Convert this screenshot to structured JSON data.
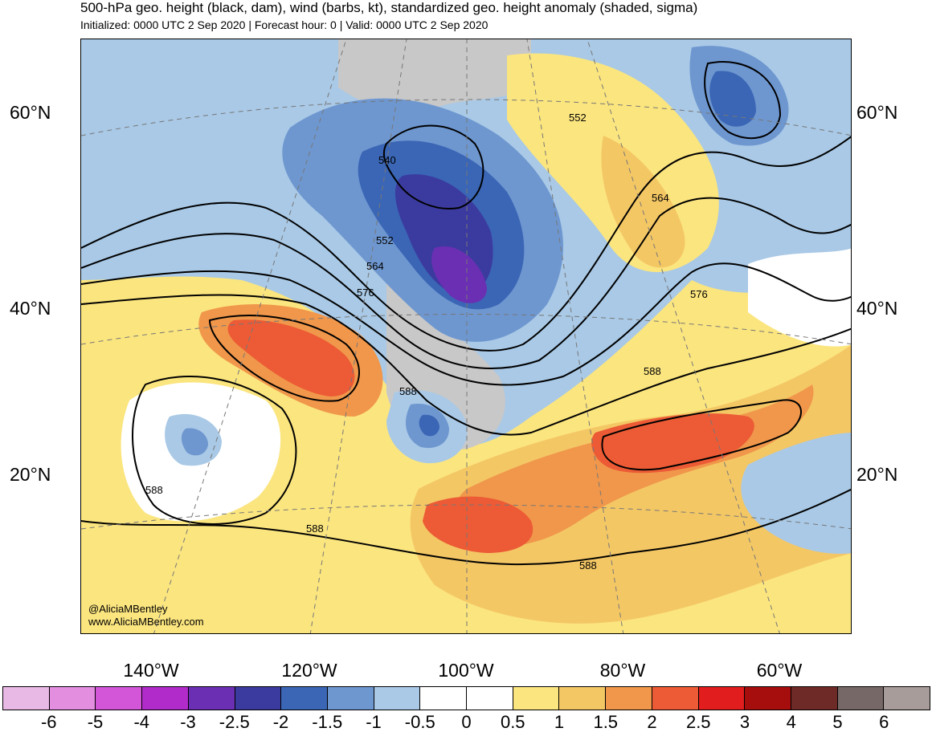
{
  "title": "500-hPa geo. height (black, dam), wind (barbs, kt), standardized geo. height anomaly (shaded, sigma)",
  "subtitle": "Initialized: 0000 UTC 2 Sep 2020 | Forecast hour: 0 | Valid: 0000 UTC 2 Sep 2020",
  "lat_labels": [
    "60°N",
    "40°N",
    "20°N"
  ],
  "lon_labels": [
    "140°W",
    "120°W",
    "100°W",
    "80°W",
    "60°W"
  ],
  "contour_labels": [
    "540",
    "552",
    "552",
    "564",
    "564",
    "576",
    "576",
    "588",
    "588",
    "588",
    "588",
    "588"
  ],
  "credits": {
    "handle": "@AliciaMBentley",
    "website": "www.AliciaMBentley.com"
  },
  "colorbar": {
    "labels": [
      "-6",
      "-5",
      "-4",
      "-3",
      "-2.5",
      "-2",
      "-1.5",
      "-1",
      "-0.5",
      "0",
      "0.5",
      "1",
      "1.5",
      "2",
      "2.5",
      "3",
      "4",
      "5",
      "6"
    ],
    "colors": [
      "#e9b9e6",
      "#e48ee0",
      "#d356d8",
      "#b02bc9",
      "#6b2fb3",
      "#3b3b9f",
      "#3a66b5",
      "#6e97d0",
      "#a9c9e6",
      "#ffffff",
      "#ffffff",
      "#fbe57f",
      "#f4c765",
      "#f0974b",
      "#ec5b35",
      "#e21d1d",
      "#a60e0e",
      "#6e2a26",
      "#766866",
      "#a89c9a"
    ]
  }
}
